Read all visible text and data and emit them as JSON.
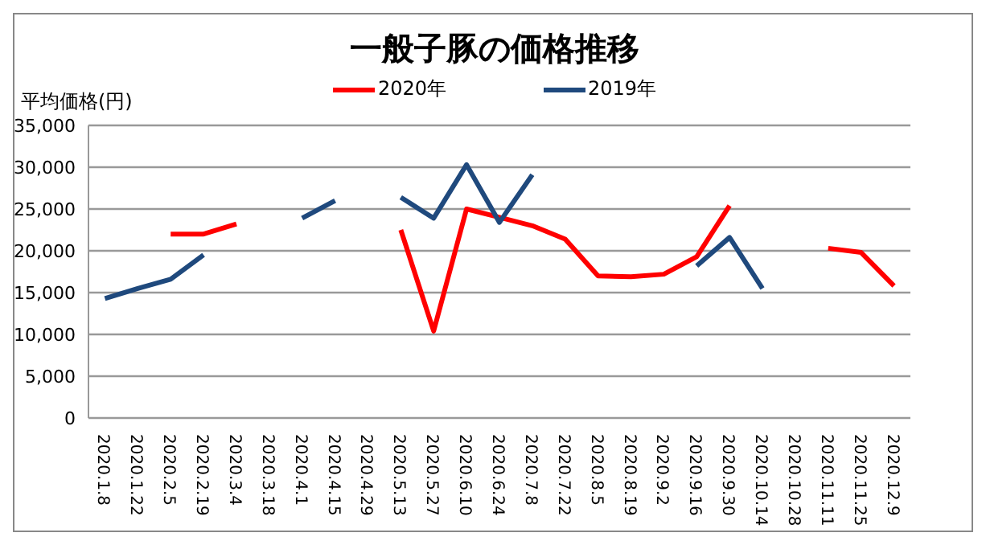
{
  "chart_data": {
    "type": "line",
    "title": "一般子豚の価格推移",
    "ylabel": "平均価格(円)",
    "categories": [
      "2020.1.8",
      "2020.1.22",
      "2020.2.5",
      "2020.2.19",
      "2020.3.4",
      "2020.3.18",
      "2020.4.1",
      "2020.4.15",
      "2020.4.29",
      "2020.5.13",
      "2020.5.27",
      "2020.6.10",
      "2020.6.24",
      "2020.7.8",
      "2020.7.22",
      "2020.8.5",
      "2020.8.19",
      "2020.9.2",
      "2020.9.16",
      "2020.9.30",
      "2020.10.14",
      "2020.10.28",
      "2020.11.11",
      "2020.11.25",
      "2020.12.9"
    ],
    "series": [
      {
        "name": "2020年",
        "color": "#ff0000",
        "values": [
          null,
          null,
          22000,
          22000,
          23200,
          null,
          null,
          null,
          null,
          22500,
          10400,
          25000,
          24000,
          23000,
          21400,
          17000,
          16900,
          17200,
          19300,
          25400,
          null,
          null,
          20300,
          19800,
          15800
        ]
      },
      {
        "name": "2019年",
        "color": "#1f497d",
        "values": [
          14300,
          15500,
          16600,
          19500,
          null,
          null,
          23900,
          26000,
          null,
          26400,
          23900,
          30300,
          23400,
          29100,
          null,
          null,
          null,
          null,
          18200,
          21600,
          15500,
          null,
          null,
          null,
          null
        ]
      }
    ],
    "ylim": [
      0,
      35000
    ],
    "yticks": [
      0,
      {
        "value": 5000,
        "label": "5,000"
      },
      {
        "value": 10000,
        "label": "10,000"
      },
      {
        "value": 15000,
        "label": "15,000"
      },
      {
        "value": 20000,
        "label": "20,000"
      },
      {
        "value": 25000,
        "label": "25,000"
      },
      {
        "value": 30000,
        "label": "30,000"
      },
      {
        "value": 35000,
        "label": "35,000"
      }
    ],
    "grid": "y",
    "legend": "top",
    "marker": "none",
    "line_style": "solid"
  }
}
